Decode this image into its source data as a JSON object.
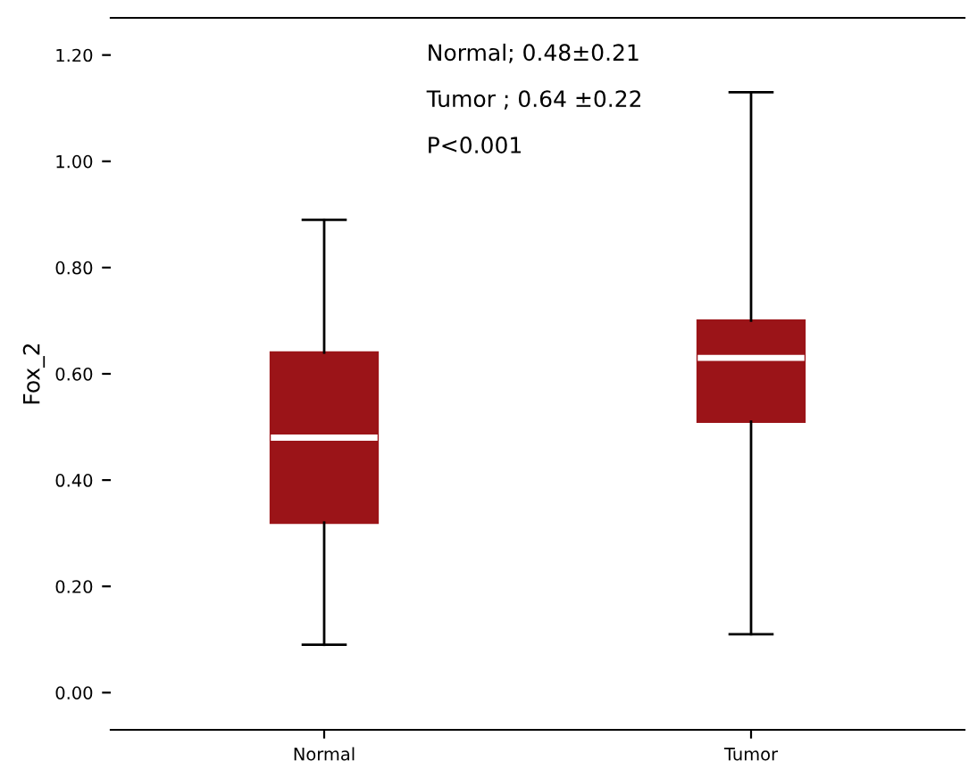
{
  "chart_data": {
    "type": "box",
    "categories": [
      "Normal",
      "Tumor"
    ],
    "ylabel": "Fox_2",
    "boxes": [
      {
        "low": 0.09,
        "q1": 0.32,
        "median": 0.48,
        "q3": 0.64,
        "high": 0.89
      },
      {
        "low": 0.11,
        "q1": 0.51,
        "median": 0.63,
        "q3": 0.7,
        "high": 1.13
      }
    ],
    "color": "#9b1418",
    "ylim": [
      -0.07,
      1.27
    ],
    "yticks": [
      {
        "value": 0,
        "label": "0.00"
      },
      {
        "value": 0.2,
        "label": "0.20"
      },
      {
        "value": 0.4,
        "label": "0.40"
      },
      {
        "value": 0.6,
        "label": "0.60"
      },
      {
        "value": 0.8,
        "label": "0.80"
      },
      {
        "value": 1.0,
        "label": "1.00"
      },
      {
        "value": 1.2,
        "label": "1.20"
      }
    ],
    "annotations": [
      "Normal; 0.48±0.21",
      "Tumor ; 0.64 ±0.22",
      "P<0.001"
    ],
    "grid": false,
    "legend": false
  }
}
